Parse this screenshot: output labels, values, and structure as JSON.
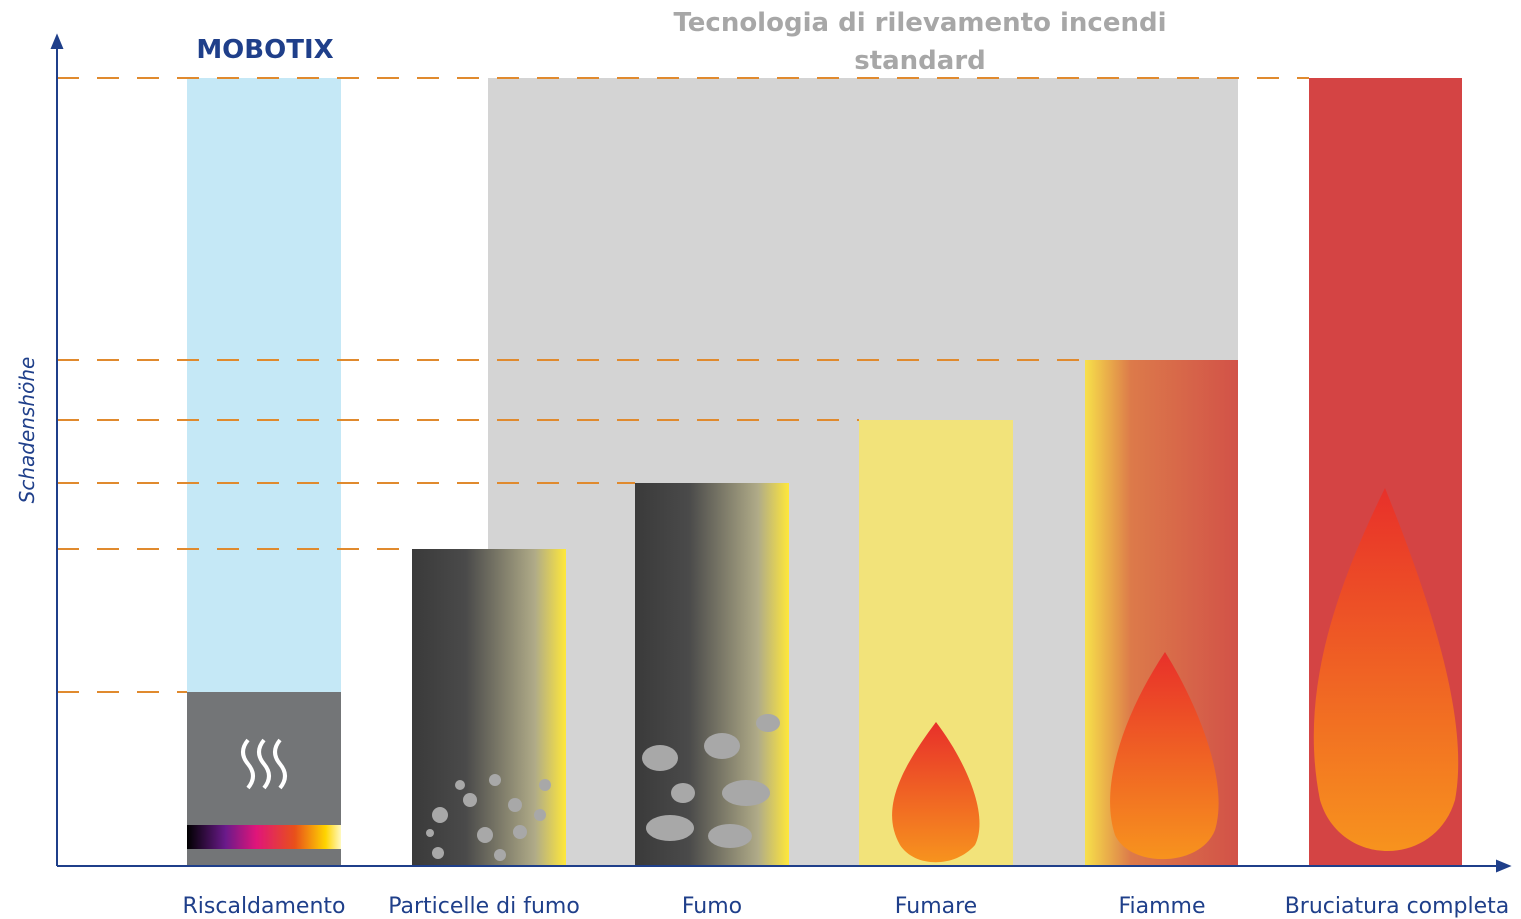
{
  "header": {
    "brand": "MOBOTIX",
    "standard_title": [
      "Tecnologia di rilevamento incendi",
      "standard"
    ]
  },
  "axis": {
    "y_label": "Schadenshöhe"
  },
  "stages": [
    "Riscaldamento",
    "Particelle di fumo",
    "Fumo",
    "Fumare",
    "Fiamme",
    "Bruciatura completa"
  ]
}
